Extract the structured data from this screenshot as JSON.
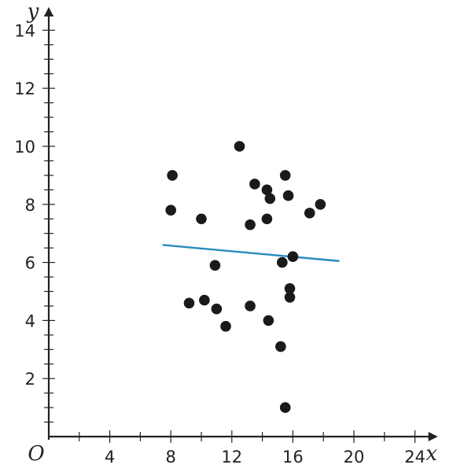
{
  "chart_data": {
    "type": "scatter",
    "title": "",
    "xlabel": "x",
    "ylabel": "y",
    "origin_label": "O",
    "xlim": [
      0,
      25.5
    ],
    "ylim": [
      0,
      14.8
    ],
    "x_major_ticks": [
      4,
      8,
      12,
      16,
      20,
      24
    ],
    "x_tick_labels": [
      "4",
      "8",
      "12",
      "16",
      "20",
      "24"
    ],
    "x_minor_step": 2,
    "y_major_ticks": [
      2,
      4,
      6,
      8,
      10,
      12,
      14
    ],
    "y_tick_labels": [
      "2",
      "4",
      "6",
      "8",
      "10",
      "12",
      "14"
    ],
    "y_minor_step": 0.5,
    "grid": false,
    "points": [
      {
        "x": 8.1,
        "y": 9.0
      },
      {
        "x": 8.0,
        "y": 7.8
      },
      {
        "x": 10.0,
        "y": 7.5
      },
      {
        "x": 12.5,
        "y": 10.0
      },
      {
        "x": 13.5,
        "y": 8.7
      },
      {
        "x": 14.3,
        "y": 8.5
      },
      {
        "x": 14.5,
        "y": 8.2
      },
      {
        "x": 14.3,
        "y": 7.5
      },
      {
        "x": 13.2,
        "y": 7.3
      },
      {
        "x": 15.5,
        "y": 9.0
      },
      {
        "x": 15.7,
        "y": 8.3
      },
      {
        "x": 17.1,
        "y": 7.7
      },
      {
        "x": 17.8,
        "y": 8.0
      },
      {
        "x": 16.0,
        "y": 6.2
      },
      {
        "x": 15.3,
        "y": 6.0
      },
      {
        "x": 10.9,
        "y": 5.9
      },
      {
        "x": 15.8,
        "y": 5.1
      },
      {
        "x": 15.8,
        "y": 4.8
      },
      {
        "x": 9.2,
        "y": 4.6
      },
      {
        "x": 10.2,
        "y": 4.7
      },
      {
        "x": 11.0,
        "y": 4.4
      },
      {
        "x": 13.2,
        "y": 4.5
      },
      {
        "x": 14.4,
        "y": 4.0
      },
      {
        "x": 11.6,
        "y": 3.8
      },
      {
        "x": 15.2,
        "y": 3.1
      },
      {
        "x": 15.5,
        "y": 1.0
      }
    ],
    "trend_line": {
      "x1": 7.5,
      "y1": 6.6,
      "x2": 19.0,
      "y2": 6.05
    },
    "colors": {
      "points": "#1a1a1a",
      "trend_line": "#2a8bbf",
      "axes": "#222222"
    }
  }
}
